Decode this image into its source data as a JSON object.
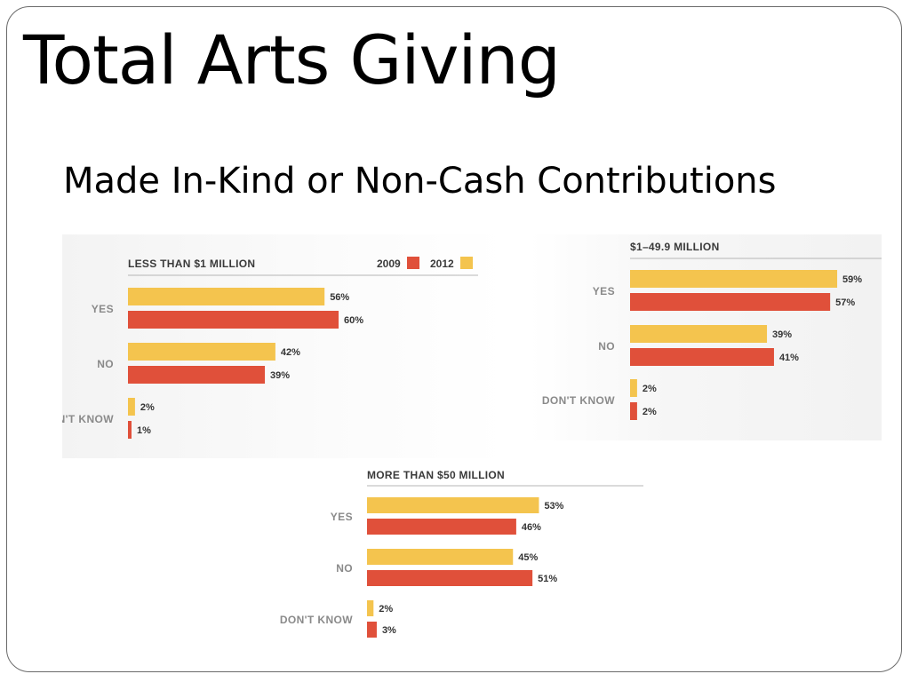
{
  "slide": {
    "title": "Total Arts Giving",
    "subtitle": "Made In-Kind or Non-Cash Contributions"
  },
  "legend": {
    "items": [
      {
        "label": "2009",
        "color": "#e0503a"
      },
      {
        "label": "2012",
        "color": "#f4c44e"
      }
    ]
  },
  "colors": {
    "year_2012": "#f4c44e",
    "year_2009": "#e0503a",
    "category_label": "#8a8a8a",
    "panel_title": "#3a3a3a",
    "value_label": "#333333"
  },
  "chart_data": [
    {
      "type": "bar",
      "orientation": "horizontal",
      "title": "LESS THAN $1 MILLION",
      "categories": [
        "YES",
        "NO",
        "DON'T KNOW"
      ],
      "series": [
        {
          "name": "2012",
          "values": [
            56,
            42,
            2
          ],
          "labels": [
            "56%",
            "42%",
            "2%"
          ]
        },
        {
          "name": "2009",
          "values": [
            60,
            39,
            1
          ],
          "labels": [
            "60%",
            "39%",
            "1%"
          ]
        }
      ],
      "unit": "%",
      "show_legend": true,
      "legend_position": "top-right"
    },
    {
      "type": "bar",
      "orientation": "horizontal",
      "title": "$1–49.9 MILLION",
      "categories": [
        "YES",
        "NO",
        "DON'T KNOW"
      ],
      "series": [
        {
          "name": "2012",
          "values": [
            59,
            39,
            2
          ],
          "labels": [
            "59%",
            "39%",
            "2%"
          ]
        },
        {
          "name": "2009",
          "values": [
            57,
            41,
            2
          ],
          "labels": [
            "57%",
            "41%",
            "2%"
          ]
        }
      ],
      "unit": "%",
      "show_legend": false
    },
    {
      "type": "bar",
      "orientation": "horizontal",
      "title": "MORE THAN $50 MILLION",
      "categories": [
        "YES",
        "NO",
        "DON'T KNOW"
      ],
      "series": [
        {
          "name": "2012",
          "values": [
            53,
            45,
            2
          ],
          "labels": [
            "53%",
            "45%",
            "2%"
          ]
        },
        {
          "name": "2009",
          "values": [
            46,
            51,
            3
          ],
          "labels": [
            "46%",
            "51%",
            "3%"
          ]
        }
      ],
      "unit": "%",
      "show_legend": false
    }
  ]
}
